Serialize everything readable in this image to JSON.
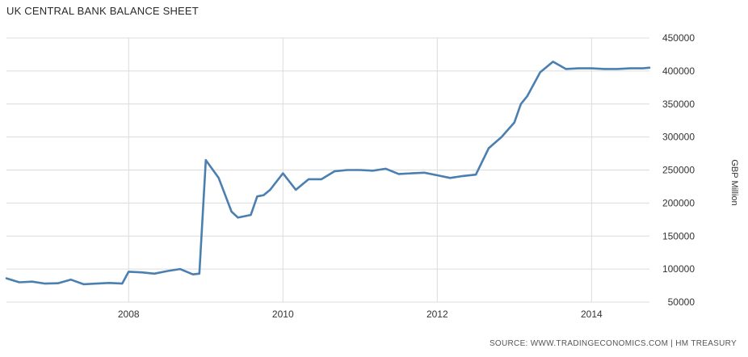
{
  "chart_data": {
    "type": "line",
    "title": "UK CENTRAL BANK BALANCE SHEET",
    "xlabel": "",
    "ylabel": "GBP Million",
    "x_ticks": [
      "2008",
      "2010",
      "2012",
      "2014"
    ],
    "y_ticks": [
      50000,
      100000,
      150000,
      200000,
      250000,
      300000,
      350000,
      400000,
      450000
    ],
    "y_tick_labels": [
      "50000",
      "100000",
      "150000",
      "200000",
      "250000",
      "300000",
      "350000",
      "400000",
      "450000"
    ],
    "ylim": [
      50000,
      450000
    ],
    "xlim": [
      "2006-06",
      "2014-10"
    ],
    "grid": true,
    "line_color": "#4a7fb0",
    "series": [
      {
        "name": "",
        "x": [
          "2006-06",
          "2006-08",
          "2006-10",
          "2006-12",
          "2007-02",
          "2007-04",
          "2007-06",
          "2007-08",
          "2007-10",
          "2007-12",
          "2008-01",
          "2008-03",
          "2008-05",
          "2008-07",
          "2008-09",
          "2008-11",
          "2008-12",
          "2009-01",
          "2009-03",
          "2009-05",
          "2009-06",
          "2009-08",
          "2009-09",
          "2009-10",
          "2009-11",
          "2010-01",
          "2010-03",
          "2010-05",
          "2010-07",
          "2010-09",
          "2010-11",
          "2011-01",
          "2011-03",
          "2011-05",
          "2011-07",
          "2011-09",
          "2011-11",
          "2012-01",
          "2012-03",
          "2012-05",
          "2012-07",
          "2012-09",
          "2012-11",
          "2013-01",
          "2013-02",
          "2013-03",
          "2013-05",
          "2013-07",
          "2013-09",
          "2013-11",
          "2014-01",
          "2014-03",
          "2014-05",
          "2014-07",
          "2014-09",
          "2014-10"
        ],
        "values": [
          86000,
          80000,
          81000,
          78000,
          78500,
          84000,
          77000,
          78000,
          79000,
          78000,
          96000,
          95000,
          93000,
          97000,
          100000,
          92000,
          93000,
          265000,
          238000,
          187000,
          178000,
          182000,
          210000,
          212000,
          220000,
          245000,
          220000,
          236000,
          236000,
          248000,
          250000,
          250000,
          249000,
          252000,
          244000,
          245000,
          246000,
          242000,
          238000,
          241000,
          243000,
          283000,
          300000,
          322000,
          350000,
          362000,
          398000,
          414000,
          403000,
          404000,
          404000,
          403000,
          403000,
          404000,
          404000,
          405000
        ]
      }
    ]
  },
  "source": "SOURCE: WWW.TRADINGECONOMICS.COM | HM TREASURY"
}
